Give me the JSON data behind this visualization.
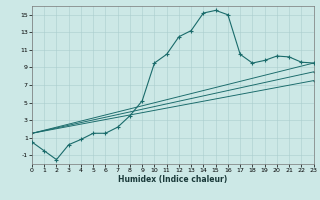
{
  "xlabel": "Humidex (Indice chaleur)",
  "bg_color": "#cce8e6",
  "grid_color": "#aacece",
  "line_color": "#1a6b6b",
  "xlim": [
    0,
    23
  ],
  "ylim": [
    -2,
    16
  ],
  "xtick_vals": [
    0,
    1,
    2,
    3,
    4,
    5,
    6,
    7,
    8,
    9,
    10,
    11,
    12,
    13,
    14,
    15,
    16,
    17,
    18,
    19,
    20,
    21,
    22,
    23
  ],
  "ytick_vals": [
    -1,
    1,
    3,
    5,
    7,
    9,
    11,
    13,
    15
  ],
  "curve_x": [
    0,
    1,
    2,
    3,
    4,
    5,
    6,
    7,
    8,
    9,
    10,
    11,
    12,
    13,
    14,
    15,
    16,
    17,
    18,
    19,
    20,
    21,
    22,
    23
  ],
  "curve_y": [
    0.5,
    -0.5,
    -1.5,
    0.2,
    0.8,
    1.5,
    1.5,
    2.2,
    3.5,
    5.2,
    9.5,
    10.5,
    12.5,
    13.2,
    15.2,
    15.5,
    15.0,
    10.5,
    9.5,
    9.8,
    10.3,
    10.2,
    9.6,
    9.5
  ],
  "ref_lines": [
    {
      "x": [
        0,
        23
      ],
      "y": [
        1.5,
        9.5
      ]
    },
    {
      "x": [
        0,
        23
      ],
      "y": [
        1.5,
        8.5
      ]
    },
    {
      "x": [
        0,
        23
      ],
      "y": [
        1.5,
        7.5
      ]
    }
  ],
  "xlabel_fontsize": 5.5,
  "tick_fontsize": 4.5,
  "marker_size": 3.0,
  "line_width": 0.8
}
